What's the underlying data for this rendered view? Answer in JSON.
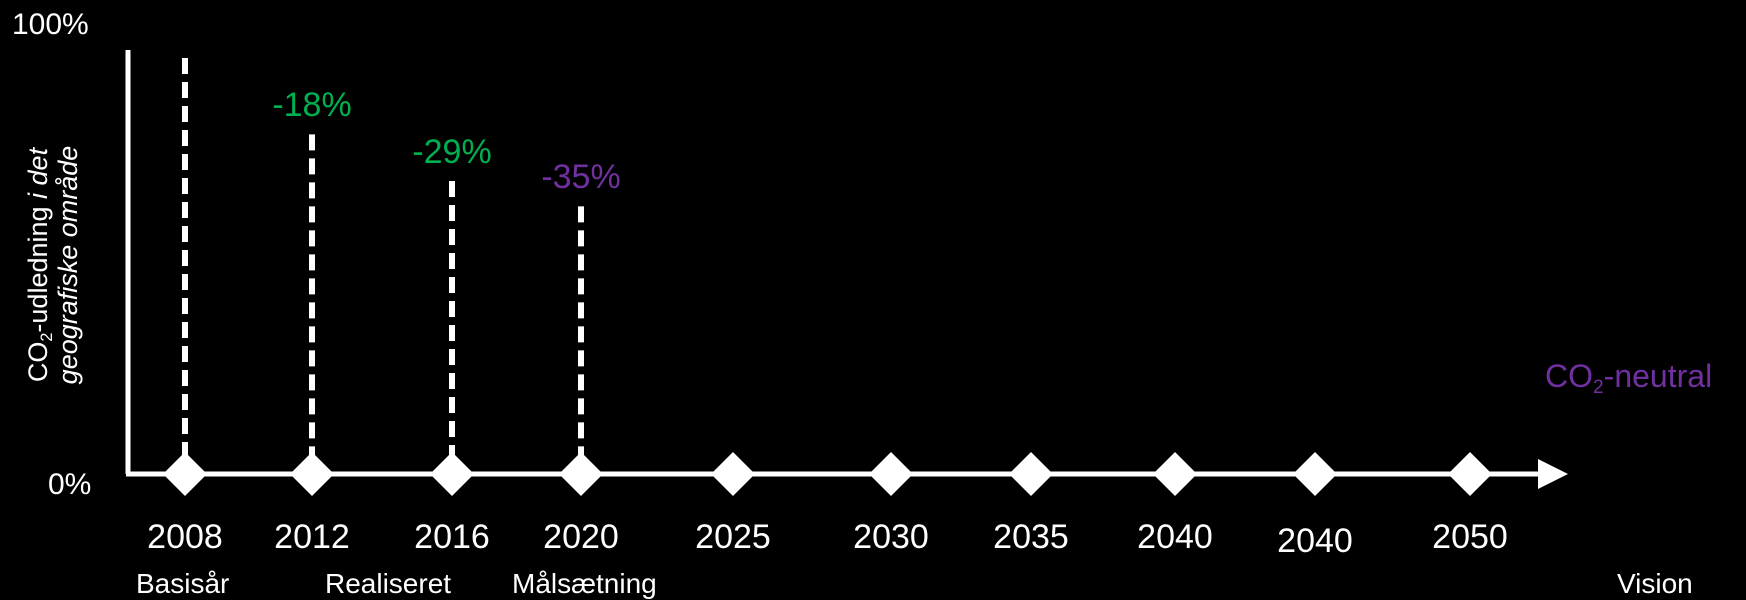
{
  "chart_data": {
    "type": "bar",
    "y_axis": {
      "tick_labels": [
        "100%",
        "0%"
      ],
      "label_parts": {
        "main": "CO",
        "sub": "2",
        "mid": "-udledning ",
        "italic1": "i det",
        "italic2": "geografiske område"
      }
    },
    "years": [
      "2008",
      "2012",
      "2016",
      "2020",
      "2025",
      "2030",
      "2035",
      "2040",
      "2040",
      "2050"
    ],
    "markers": [
      {
        "year": "2008",
        "value": 100,
        "label": ""
      },
      {
        "year": "2012",
        "value": 82,
        "label": "-18%"
      },
      {
        "year": "2016",
        "value": 71,
        "label": "-29%"
      },
      {
        "year": "2020",
        "value": 65,
        "label": "-35%"
      }
    ],
    "phases": [
      "Basisår",
      "Realiseret",
      "Målsætning",
      "Vision"
    ],
    "vision": {
      "main": "CO",
      "sub": "2",
      "rest": "-neutral"
    },
    "colors": {
      "background": "#000000",
      "axis": "#ffffff",
      "realized": "#00b050",
      "target": "#7030a0"
    }
  }
}
